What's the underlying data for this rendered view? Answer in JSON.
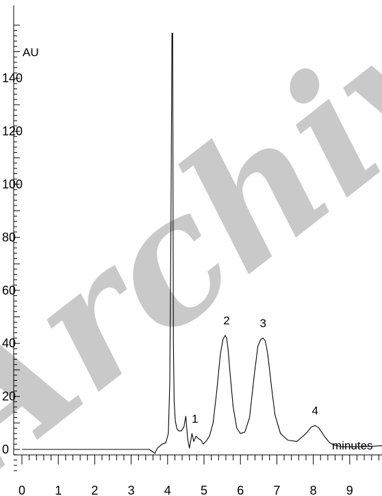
{
  "chart_data": {
    "type": "line",
    "ylabel": "AU",
    "xlabel": "minutes",
    "xlim": [
      0,
      10
    ],
    "ylim": [
      -8,
      160
    ],
    "x_ticks": [
      "0",
      "1",
      "2",
      "3",
      "4",
      "5",
      "6",
      "7",
      "8",
      "9"
    ],
    "y_ticks": [
      "0",
      "20",
      "40",
      "60",
      "80",
      "100",
      "120",
      "140"
    ],
    "grid": false,
    "peaks": [
      {
        "label": "1",
        "x": 4.75,
        "y": 6
      },
      {
        "label": "2",
        "x": 5.62,
        "y": 43
      },
      {
        "label": "3",
        "x": 6.62,
        "y": 42
      },
      {
        "label": "4",
        "x": 8.05,
        "y": 9
      }
    ],
    "series": [
      {
        "x": [
          0,
          1,
          2,
          3,
          3.5,
          3.65,
          3.72,
          3.85,
          3.95,
          4.02,
          4.06,
          4.09,
          4.12,
          4.14,
          4.16,
          4.18,
          4.21,
          4.25,
          4.3,
          4.38,
          4.45,
          4.5,
          4.55,
          4.6,
          4.67,
          4.72,
          4.78,
          4.85,
          4.92,
          4.98,
          5.05,
          5.15,
          5.25,
          5.35,
          5.45,
          5.52,
          5.58,
          5.62,
          5.66,
          5.72,
          5.8,
          5.9,
          6.0,
          6.12,
          6.25,
          6.38,
          6.48,
          6.56,
          6.62,
          6.68,
          6.75,
          6.85,
          6.95,
          7.1,
          7.3,
          7.55,
          7.8,
          7.95,
          8.05,
          8.15,
          8.3,
          8.45,
          8.6,
          8.8,
          9.0,
          9.3,
          9.6,
          10.0
        ],
        "y": [
          0,
          0,
          0,
          0,
          0,
          -1.5,
          0.5,
          2,
          2.5,
          6,
          25,
          80,
          157,
          157,
          40,
          18,
          11,
          8,
          7,
          7,
          8.5,
          12.5,
          4,
          0.5,
          6,
          3,
          5,
          4,
          3.5,
          2,
          3,
          5,
          10,
          22,
          36,
          41.5,
          43,
          42,
          38,
          28,
          16,
          8,
          6,
          6.5,
          12,
          28,
          39,
          41.5,
          42,
          41,
          36,
          24,
          13,
          6,
          3.5,
          3,
          6,
          8.5,
          9,
          8.2,
          5,
          2.5,
          1.5,
          1,
          1,
          1,
          1.2,
          1.5
        ]
      }
    ]
  },
  "watermark": "Archive of SID"
}
